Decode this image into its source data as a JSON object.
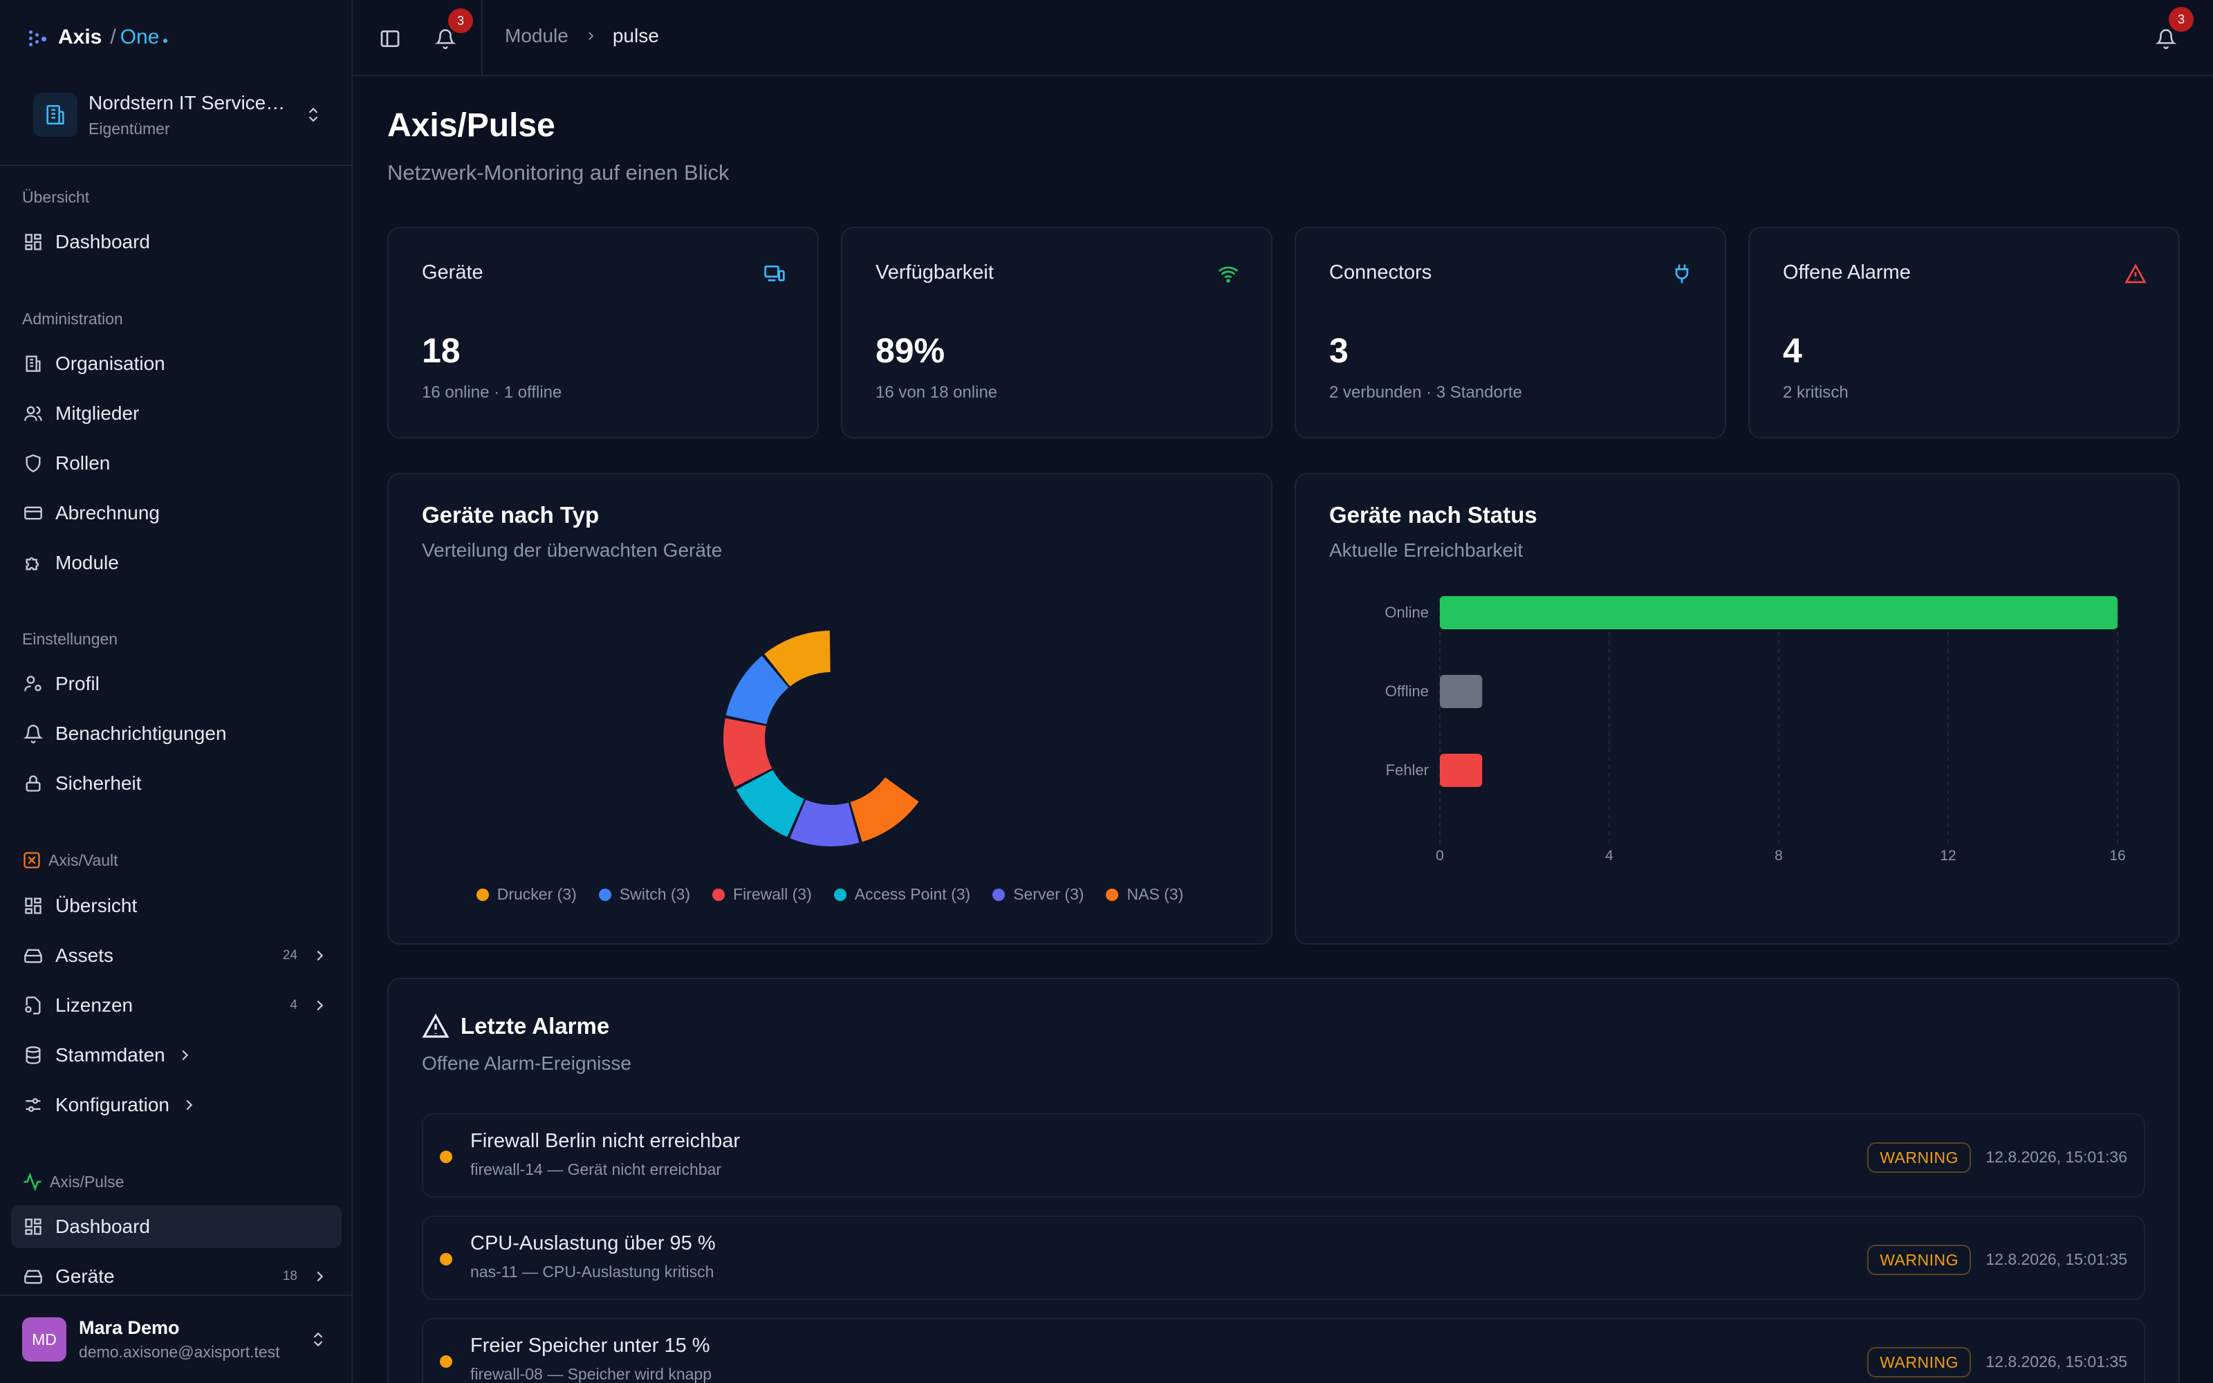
{
  "brand": {
    "name": "Axis",
    "slash": "/",
    "product": "One"
  },
  "org": {
    "name": "Nordstern IT Service…",
    "role": "Eigentümer"
  },
  "sidebar": {
    "overview_label": "Übersicht",
    "overview_items": [
      {
        "label": "Dashboard",
        "icon": "dashboard-icon"
      }
    ],
    "admin_label": "Administration",
    "admin_items": [
      {
        "label": "Organisation",
        "icon": "building-icon"
      },
      {
        "label": "Mitglieder",
        "icon": "users-icon"
      },
      {
        "label": "Rollen",
        "icon": "shield-icon"
      },
      {
        "label": "Abrechnung",
        "icon": "credit-card-icon"
      },
      {
        "label": "Module",
        "icon": "puzzle-icon"
      }
    ],
    "settings_label": "Einstellungen",
    "settings_items": [
      {
        "label": "Profil",
        "icon": "user-cog-icon"
      },
      {
        "label": "Benachrichtigungen",
        "icon": "bell-icon"
      },
      {
        "label": "Sicherheit",
        "icon": "lock-icon"
      }
    ],
    "vault_label": "Axis/Vault",
    "vault_items": [
      {
        "label": "Übersicht",
        "icon": "dashboard-icon"
      },
      {
        "label": "Assets",
        "count": "24",
        "icon": "hard-drive-icon"
      },
      {
        "label": "Lizenzen",
        "count": "4",
        "icon": "file-key-icon"
      },
      {
        "label": "Stammdaten",
        "icon": "database-icon"
      },
      {
        "label": "Konfiguration",
        "icon": "sliders-icon"
      }
    ],
    "pulse_label": "Axis/Pulse",
    "pulse_items": [
      {
        "label": "Dashboard",
        "icon": "dashboard-icon",
        "active": true
      },
      {
        "label": "Geräte",
        "count": "18",
        "icon": "hard-drive-icon"
      }
    ]
  },
  "user": {
    "initials": "MD",
    "name": "Mara Demo",
    "email": "demo.axisone@axisport.test"
  },
  "topbar": {
    "notif_count": "3",
    "notif_count_right": "3",
    "crumb_parent": "Module",
    "crumb_current": "pulse"
  },
  "page": {
    "title": "Axis/Pulse",
    "subtitle": "Netzwerk-Monitoring auf einen Blick"
  },
  "stats": [
    {
      "title": "Geräte",
      "value": "18",
      "detail": "16 online · 1 offline",
      "icon": "devices-icon",
      "icon_color": "#38bdf8"
    },
    {
      "title": "Verfügbarkeit",
      "value": "89%",
      "detail": "16 von 18 online",
      "icon": "wifi-icon",
      "icon_color": "#22c55e"
    },
    {
      "title": "Connectors",
      "value": "3",
      "detail": "2 verbunden · 3 Standorte",
      "icon": "plug-icon",
      "icon_color": "#38bdf8"
    },
    {
      "title": "Offene Alarme",
      "value": "4",
      "detail": "2 kritisch",
      "icon": "alert-triangle-icon",
      "icon_color": "#ef4444"
    }
  ],
  "type_panel": {
    "title": "Geräte nach Typ",
    "subtitle": "Verteilung der überwachten Geräte"
  },
  "status_panel": {
    "title": "Geräte nach Status",
    "subtitle": "Aktuelle Erreichbarkeit"
  },
  "chart_data": [
    {
      "type": "pie",
      "title": "Geräte nach Typ",
      "categories": [
        "Drucker",
        "Switch",
        "Firewall",
        "Access Point",
        "Server",
        "NAS"
      ],
      "values": [
        3,
        3,
        3,
        3,
        3,
        3
      ],
      "legend_labels": [
        "Drucker (3)",
        "Switch (3)",
        "Firewall (3)",
        "Access Point (3)",
        "Server (3)",
        "NAS (3)"
      ],
      "colors": [
        "#f59e0b",
        "#3b82f6",
        "#ef4444",
        "#06b6d4",
        "#6366f1",
        "#f97316"
      ],
      "legend_position": "bottom"
    },
    {
      "type": "bar",
      "orientation": "horizontal",
      "title": "Geräte nach Status",
      "categories": [
        "Online",
        "Offline",
        "Fehler"
      ],
      "values": [
        16,
        1,
        1
      ],
      "colors": [
        "#22c55e",
        "#6b7280",
        "#ef4444"
      ],
      "xlim": [
        0,
        16
      ],
      "xticks": [
        "0",
        "4",
        "8",
        "12",
        "16"
      ],
      "grid": true
    }
  ],
  "alarms_panel": {
    "title": "Letzte Alarme",
    "subtitle": "Offene Alarm-Ereignisse"
  },
  "alarms": [
    {
      "title": "Firewall Berlin nicht erreichbar",
      "desc": "firewall-14 — Gerät nicht erreichbar",
      "severity": "WARNING",
      "time": "12.8.2026, 15:01:36"
    },
    {
      "title": "CPU-Auslastung über 95 %",
      "desc": "nas-11 — CPU-Auslastung kritisch",
      "severity": "WARNING",
      "time": "12.8.2026, 15:01:35"
    },
    {
      "title": "Freier Speicher unter 15 %",
      "desc": "firewall-08 — Speicher wird knapp",
      "severity": "WARNING",
      "time": "12.8.2026, 15:01:35"
    }
  ]
}
